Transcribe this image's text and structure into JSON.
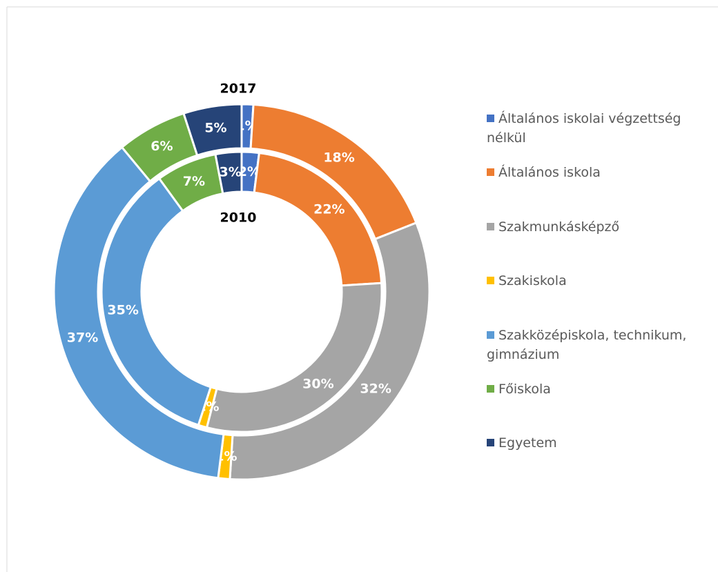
{
  "chart_data": {
    "type": "doughnut",
    "categories": [
      "Általános iskolai végzettség nélkül",
      "Általános iskola",
      "Szakmunkásképző",
      "Szakiskola",
      "Szakközépiskola, technikum, gimnázium",
      "Főiskola",
      "Egyetem"
    ],
    "colors": [
      "#4472c4",
      "#ed7d31",
      "#a5a5a5",
      "#ffc000",
      "#5b9bd5",
      "#70ad47",
      "#264478"
    ],
    "series": [
      {
        "name": "2017",
        "values": [
          1,
          18,
          32,
          1,
          37,
          6,
          5
        ],
        "value_labels": [
          "1%",
          "18%",
          "32%",
          "1%",
          "37%",
          "6%",
          "5%"
        ]
      },
      {
        "name": "2010",
        "values": [
          2,
          22,
          30,
          1,
          35,
          7,
          3
        ],
        "value_labels": [
          "2%",
          "22%",
          "30%",
          "1%",
          "35%",
          "7%",
          "3%"
        ]
      }
    ],
    "legend": "right"
  }
}
